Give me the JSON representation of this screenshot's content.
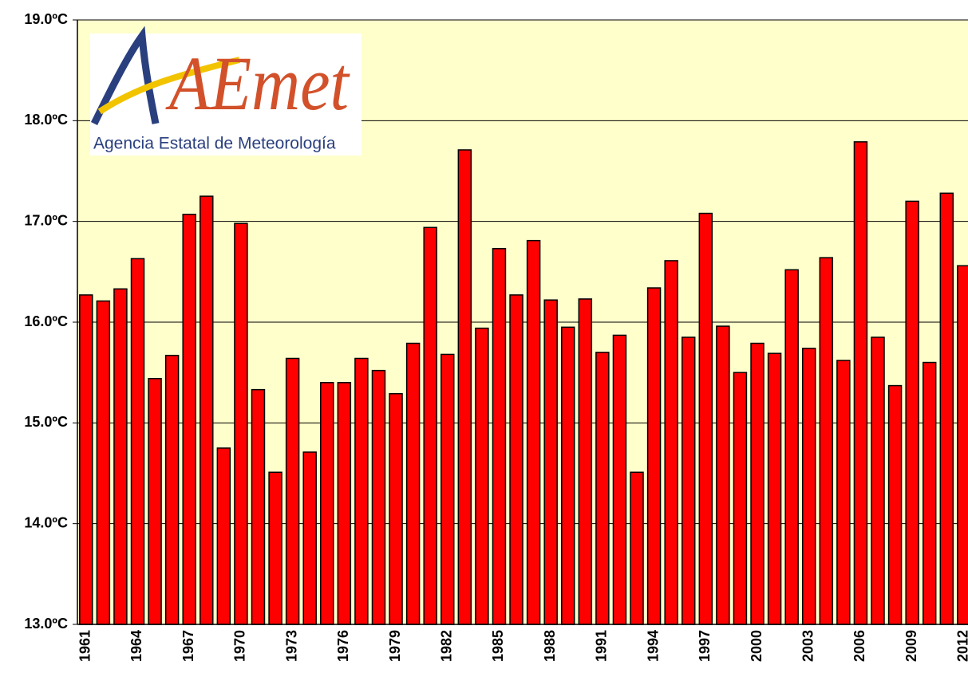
{
  "logo": {
    "mark": "AEmet",
    "text": "Agencia Estatal de Meteorología"
  },
  "chart_data": {
    "type": "bar",
    "categories": [
      "1961",
      null,
      null,
      "1964",
      null,
      null,
      "1967",
      null,
      null,
      "1970",
      null,
      null,
      "1973",
      null,
      null,
      "1976",
      null,
      null,
      "1979",
      null,
      null,
      "1982",
      null,
      null,
      "1985",
      null,
      null,
      "1988",
      null,
      null,
      "1991",
      null,
      null,
      "1994",
      null,
      null,
      "1997",
      null,
      null,
      "2000",
      null,
      null,
      "2003",
      null,
      null,
      "2006",
      null,
      null,
      "2009",
      null,
      null,
      "2012"
    ],
    "values": [
      16.27,
      16.21,
      16.33,
      16.63,
      15.44,
      15.67,
      17.07,
      17.25,
      14.75,
      16.98,
      15.33,
      14.51,
      15.64,
      14.71,
      15.4,
      15.4,
      15.64,
      15.52,
      15.29,
      15.79,
      16.94,
      15.68,
      17.71,
      15.94,
      16.73,
      16.27,
      16.81,
      16.22,
      15.95,
      16.23,
      15.7,
      15.87,
      14.51,
      16.34,
      16.61,
      15.85,
      17.08,
      15.96,
      15.5,
      15.79,
      15.69,
      16.52,
      15.74,
      16.64,
      15.62,
      17.79,
      15.85,
      15.37,
      17.2,
      15.6,
      17.28,
      16.56
    ],
    "color": "#ff0000",
    "ylim": [
      13,
      19
    ],
    "yticks": [
      {
        "value": 13,
        "label": "13.0ºC"
      },
      {
        "value": 14,
        "label": "14.0ºC"
      },
      {
        "value": 15,
        "label": "15.0ºC"
      },
      {
        "value": 16,
        "label": "16.0ºC"
      },
      {
        "value": 17,
        "label": "17.0ºC"
      },
      {
        "value": 18,
        "label": "18.0ºC"
      },
      {
        "value": 19,
        "label": "19.0ºC"
      }
    ],
    "grid": true
  }
}
